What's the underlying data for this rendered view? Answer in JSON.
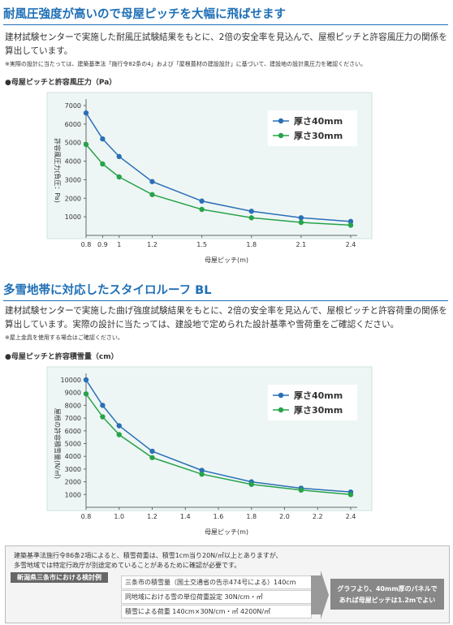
{
  "sections": [
    {
      "heading": "耐風圧強度が高いので母屋ピッチを大幅に飛ばせます",
      "body": "建材試験センターで実施した耐風圧試験結果をもとに、2倍の安全率を見込んで、屋根ピッチと許容風圧力の関係を算出しています。",
      "note": "※実際の設計に当たっては、建築基準法「施行令82条の4」および「屋根葺材の建設設計」に基づいて、建設地の設計風圧力を確認ください。"
    },
    {
      "heading": "多雪地帯に対応したスタイロルーフ BL",
      "body": "建材試験センターで実施した曲げ強度試験結果をもとに、2倍の安全率を見込んで、屋根ピッチと許容荷重の関係を算出しています。実際の設計に当たっては、建設地で定められた設計基準や雪荷重をご確認ください。",
      "note": "※屋上金具を使用する場合はご確認ください。"
    }
  ],
  "chart_data": [
    {
      "type": "line",
      "title": "●母屋ピッチと許容風圧力（Pa）",
      "xlabel": "母屋ピッチ(m)",
      "ylabel": "許容風圧力(負圧：Pa)",
      "x": [
        0.8,
        0.9,
        1,
        1.2,
        1.5,
        1.8,
        2.1,
        2.4
      ],
      "series": [
        {
          "name": "厚さ40mm",
          "color": "#2a6fb6",
          "values": [
            6600,
            5200,
            4250,
            2900,
            1850,
            1300,
            950,
            750
          ]
        },
        {
          "name": "厚さ30mm",
          "color": "#27a34a",
          "values": [
            4900,
            3850,
            3150,
            2200,
            1400,
            950,
            700,
            550
          ]
        }
      ],
      "xlim": [
        0.8,
        2.4
      ],
      "ylim": [
        0,
        7000
      ],
      "xticks": [
        0.8,
        0.9,
        1,
        1.2,
        1.5,
        1.8,
        2.1,
        2.4
      ],
      "yticks": [
        1000,
        2000,
        3000,
        4000,
        5000,
        6000,
        7000
      ],
      "legend": "upper right"
    },
    {
      "type": "line",
      "title": "●母屋ピッチと許容積雪量（cm）",
      "xlabel": "母屋ピッチ(m)",
      "ylabel": "屋根の許容積雪量(N/㎡)",
      "x": [
        0.8,
        0.9,
        1,
        1.2,
        1.5,
        1.8,
        2.1,
        2.4
      ],
      "series": [
        {
          "name": "厚さ40mm",
          "color": "#2a6fb6",
          "values": [
            10000,
            8000,
            6400,
            4400,
            2900,
            2000,
            1500,
            1200
          ]
        },
        {
          "name": "厚さ30mm",
          "color": "#27a34a",
          "values": [
            8900,
            7100,
            5700,
            3900,
            2600,
            1800,
            1350,
            1000
          ]
        }
      ],
      "xlim": [
        0.8,
        2.4
      ],
      "ylim": [
        0,
        10000
      ],
      "xticks": [
        0.8,
        {
          "value": 1,
          "label": "1.0"
        },
        1.2,
        1.4,
        1.6,
        1.8,
        {
          "value": 2,
          "label": "2.0"
        },
        2.2,
        2.4
      ],
      "yticks": [
        1000,
        2000,
        3000,
        4000,
        5000,
        6000,
        7000,
        8000,
        9000,
        10000
      ],
      "legend": "upper right"
    }
  ],
  "example": {
    "intro": [
      "建築基準法施行令86条2項によると、積雪荷重は、積雪1cm当り20N/㎡以上とありますが、",
      "多雪地域では特定行政庁が別途定めていることがあるために確認が必要です。"
    ],
    "tag": "新潟県三条市における検討例",
    "rows": [
      "三条市の積雪量（国土交通省の告示474号による）140cm",
      "同地域における雪の単位荷重設定 30N/cm・㎡",
      "積雪による荷重 140cm×30N/cm・㎡ 4200N/㎡"
    ],
    "result": [
      "グラフより、40mm厚のパネルで",
      "あれば母屋ピッチは1.2mでよい"
    ]
  }
}
